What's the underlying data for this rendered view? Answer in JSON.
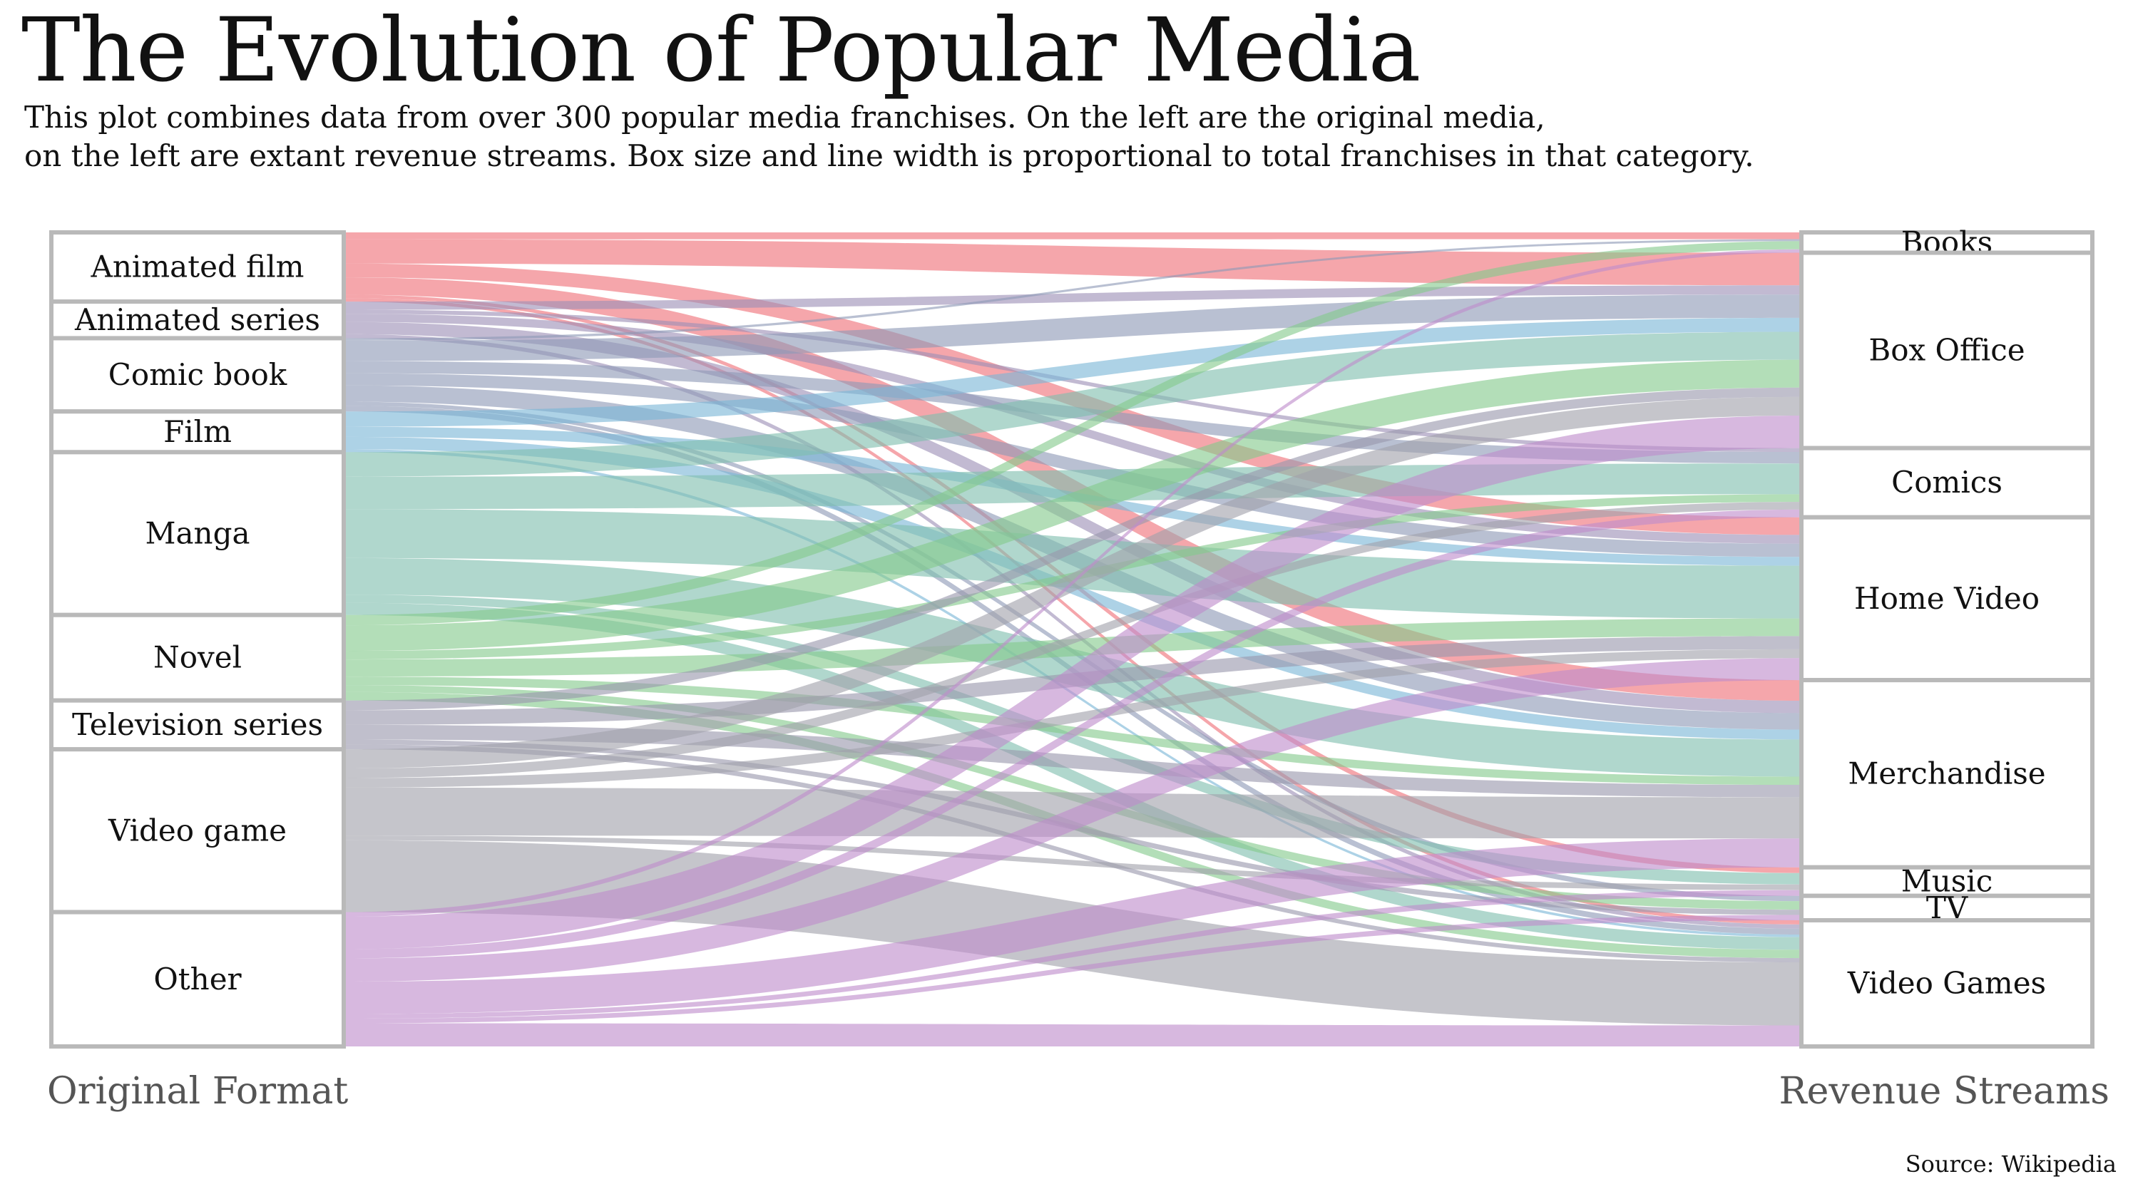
{
  "title": "The Evolution of Popular Media",
  "subtitle": {
    "line1": "This plot combines data from over 300 popular media franchises. On the left are the original media,",
    "line2": "on the left are extant revenue streams. Box size and line width is proportional to total franchises in that category."
  },
  "axis_labels": {
    "left": "Original Format",
    "right": "Revenue Streams"
  },
  "source": "Source: Wikipedia",
  "colors": {
    "animated": "#ef6f77",
    "animated_series": "#9c8fb6",
    "comic": "#8e9ab6",
    "film": "#7bb6d6",
    "manga": "#80bfae",
    "novel": "#85c98c",
    "tv_series": "#9a98ad",
    "video_game": "#a2a1ab",
    "other": "#bf8ccb",
    "box_stroke": "#b9b9b9"
  },
  "chart_data": {
    "type": "sankey",
    "sources": [
      {
        "label": "Animated film",
        "color_key": "animated",
        "size": 0.085
      },
      {
        "label": "Animated series",
        "color_key": "animated_series",
        "size": 0.045
      },
      {
        "label": "Comic book",
        "color_key": "comic",
        "size": 0.09
      },
      {
        "label": "Film",
        "color_key": "film",
        "size": 0.05
      },
      {
        "label": "Manga",
        "color_key": "manga",
        "size": 0.2
      },
      {
        "label": "Novel",
        "color_key": "novel",
        "size": 0.105
      },
      {
        "label": "Television series",
        "color_key": "tv_series",
        "size": 0.06
      },
      {
        "label": "Video game",
        "color_key": "video_game",
        "size": 0.2
      },
      {
        "label": "Other",
        "color_key": "other",
        "size": 0.165
      }
    ],
    "targets": [
      {
        "label": "Books",
        "size": 0.025
      },
      {
        "label": "Box Office",
        "size": 0.24
      },
      {
        "label": "Comics",
        "size": 0.085
      },
      {
        "label": "Home Video",
        "size": 0.2
      },
      {
        "label": "Merchandise",
        "size": 0.23
      },
      {
        "label": "Music",
        "size": 0.035
      },
      {
        "label": "TV",
        "size": 0.03
      },
      {
        "label": "Video Games",
        "size": 0.155
      }
    ],
    "flows": [
      {
        "source": "Animated film",
        "target": "Books",
        "value": 1.0
      },
      {
        "source": "Animated film",
        "target": "Box Office",
        "value": 3.5
      },
      {
        "source": "Animated film",
        "target": "Home Video",
        "value": 2.0
      },
      {
        "source": "Animated film",
        "target": "Merchandise",
        "value": 2.5
      },
      {
        "source": "Animated film",
        "target": "Music",
        "value": 0.5
      },
      {
        "source": "Animated film",
        "target": "Video Games",
        "value": 0.5
      },
      {
        "source": "Animated series",
        "target": "Box Office",
        "value": 1.0
      },
      {
        "source": "Animated series",
        "target": "Comics",
        "value": 0.5
      },
      {
        "source": "Animated series",
        "target": "Home Video",
        "value": 1.0
      },
      {
        "source": "Animated series",
        "target": "Merchandise",
        "value": 1.5
      },
      {
        "source": "Animated series",
        "target": "Video Games",
        "value": 0.5
      },
      {
        "source": "Comic book",
        "target": "Books",
        "value": 0.3
      },
      {
        "source": "Comic book",
        "target": "Box Office",
        "value": 2.5
      },
      {
        "source": "Comic book",
        "target": "Comics",
        "value": 1.5
      },
      {
        "source": "Comic book",
        "target": "Home Video",
        "value": 1.5
      },
      {
        "source": "Comic book",
        "target": "Merchandise",
        "value": 2.0
      },
      {
        "source": "Comic book",
        "target": "TV",
        "value": 0.5
      },
      {
        "source": "Comic book",
        "target": "Video Games",
        "value": 0.7
      },
      {
        "source": "Film",
        "target": "Box Office",
        "value": 1.5
      },
      {
        "source": "Film",
        "target": "Home Video",
        "value": 1.0
      },
      {
        "source": "Film",
        "target": "Merchandise",
        "value": 1.2
      },
      {
        "source": "Film",
        "target": "Video Games",
        "value": 0.3
      },
      {
        "source": "Manga",
        "target": "Box Office",
        "value": 3.0
      },
      {
        "source": "Manga",
        "target": "Comics",
        "value": 4.0
      },
      {
        "source": "Manga",
        "target": "Home Video",
        "value": 6.0
      },
      {
        "source": "Manga",
        "target": "Merchandise",
        "value": 4.5
      },
      {
        "source": "Manga",
        "target": "Music",
        "value": 1.0
      },
      {
        "source": "Manga",
        "target": "Video Games",
        "value": 1.5
      },
      {
        "source": "Novel",
        "target": "Books",
        "value": 1.2
      },
      {
        "source": "Novel",
        "target": "Box Office",
        "value": 3.0
      },
      {
        "source": "Novel",
        "target": "Comics",
        "value": 1.0
      },
      {
        "source": "Novel",
        "target": "Home Video",
        "value": 2.0
      },
      {
        "source": "Novel",
        "target": "Merchandise",
        "value": 1.0
      },
      {
        "source": "Novel",
        "target": "TV",
        "value": 0.8
      },
      {
        "source": "Novel",
        "target": "Video Games",
        "value": 1.0
      },
      {
        "source": "Television series",
        "target": "Box Office",
        "value": 1.0
      },
      {
        "source": "Television series",
        "target": "Home Video",
        "value": 1.5
      },
      {
        "source": "Television series",
        "target": "Merchandise",
        "value": 1.5
      },
      {
        "source": "Television series",
        "target": "TV",
        "value": 0.5
      },
      {
        "source": "Television series",
        "target": "Video Games",
        "value": 0.5
      },
      {
        "source": "Video game",
        "target": "Box Office",
        "value": 2.0
      },
      {
        "source": "Video game",
        "target": "Comics",
        "value": 1.0
      },
      {
        "source": "Video game",
        "target": "Home Video",
        "value": 1.0
      },
      {
        "source": "Video game",
        "target": "Merchandise",
        "value": 5.0
      },
      {
        "source": "Video game",
        "target": "Music",
        "value": 0.5
      },
      {
        "source": "Video game",
        "target": "Video Games",
        "value": 7.5
      },
      {
        "source": "Other",
        "target": "Books",
        "value": 0.5
      },
      {
        "source": "Other",
        "target": "Box Office",
        "value": 3.5
      },
      {
        "source": "Other",
        "target": "Comics",
        "value": 1.0
      },
      {
        "source": "Other",
        "target": "Home Video",
        "value": 2.5
      },
      {
        "source": "Other",
        "target": "Merchandise",
        "value": 3.5
      },
      {
        "source": "Other",
        "target": "Music",
        "value": 0.5
      },
      {
        "source": "Other",
        "target": "TV",
        "value": 0.5
      },
      {
        "source": "Other",
        "target": "Video Games",
        "value": 2.5
      }
    ]
  }
}
